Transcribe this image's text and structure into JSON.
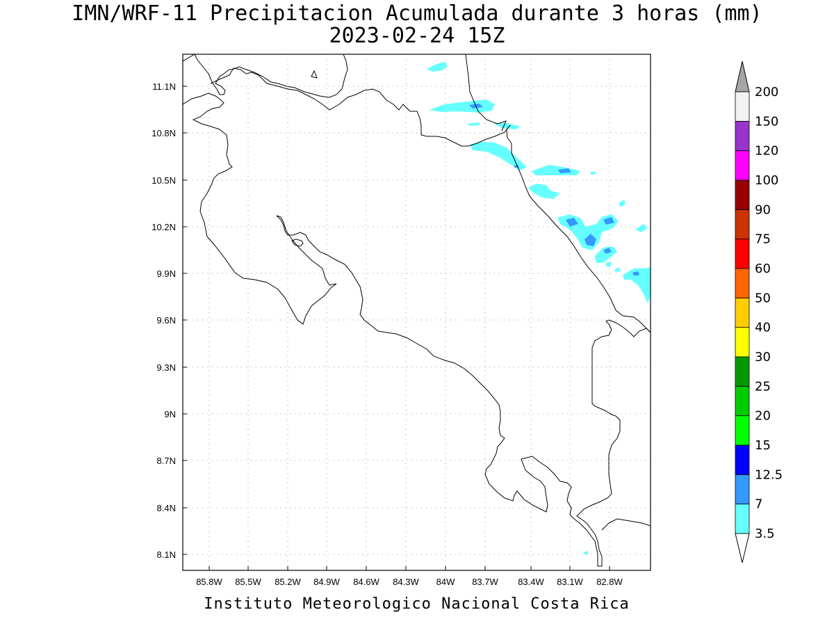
{
  "title": {
    "line1": "IMN/WRF-11 Precipitacion Acumulada durante 3 horas (mm)",
    "line2": "2023-02-24 15Z"
  },
  "footer": "Instituto Meteorologico Nacional Costa Rica",
  "map": {
    "lon_range": [
      -86.05,
      -82.5
    ],
    "lat_range": [
      8.0,
      11.3
    ],
    "x_ticks": [
      {
        "value": -85.8,
        "label": "85.8W"
      },
      {
        "value": -85.5,
        "label": "85.5W"
      },
      {
        "value": -85.2,
        "label": "85.2W"
      },
      {
        "value": -84.9,
        "label": "84.9W"
      },
      {
        "value": -84.6,
        "label": "84.6W"
      },
      {
        "value": -84.3,
        "label": "84.3W"
      },
      {
        "value": -84.0,
        "label": "84W"
      },
      {
        "value": -83.7,
        "label": "83.7W"
      },
      {
        "value": -83.4,
        "label": "83.4W"
      },
      {
        "value": -83.1,
        "label": "83.1W"
      },
      {
        "value": -82.8,
        "label": "82.8W"
      }
    ],
    "y_ticks": [
      {
        "value": 11.1,
        "label": "11.1N"
      },
      {
        "value": 10.8,
        "label": "10.8N"
      },
      {
        "value": 10.5,
        "label": "10.5N"
      },
      {
        "value": 10.2,
        "label": "10.2N"
      },
      {
        "value": 9.9,
        "label": "9.9N"
      },
      {
        "value": 9.6,
        "label": "9.6N"
      },
      {
        "value": 9.3,
        "label": "9.3N"
      },
      {
        "value": 9.0,
        "label": "9N"
      },
      {
        "value": 8.7,
        "label": "8.7N"
      },
      {
        "value": 8.4,
        "label": "8.4N"
      },
      {
        "value": 8.1,
        "label": "8.1N"
      }
    ],
    "grid": true
  },
  "colorbar": {
    "levels": [
      {
        "label": "3.5",
        "color": "#66ffff"
      },
      {
        "label": "7",
        "color": "#3399ff"
      },
      {
        "label": "12.5",
        "color": "#0000ff"
      },
      {
        "label": "15",
        "color": "#00ff00"
      },
      {
        "label": "20",
        "color": "#00cc00"
      },
      {
        "label": "25",
        "color": "#009900"
      },
      {
        "label": "30",
        "color": "#ffff00"
      },
      {
        "label": "40",
        "color": "#ffcc00"
      },
      {
        "label": "50",
        "color": "#ff6600"
      },
      {
        "label": "60",
        "color": "#ff0000"
      },
      {
        "label": "75",
        "color": "#cc3300"
      },
      {
        "label": "90",
        "color": "#990000"
      },
      {
        "label": "100",
        "color": "#ff00ff"
      },
      {
        "label": "120",
        "color": "#9933cc"
      },
      {
        "label": "150",
        "color": "#f2f2f2"
      },
      {
        "label": "200",
        "color": "#a6a6a6"
      }
    ],
    "top_arrow_color": "#a6a6a6",
    "bottom_arrow_color": "#ffffff"
  },
  "precip_colors": {
    "light": "#66ffff",
    "medium": "#3399ff"
  }
}
